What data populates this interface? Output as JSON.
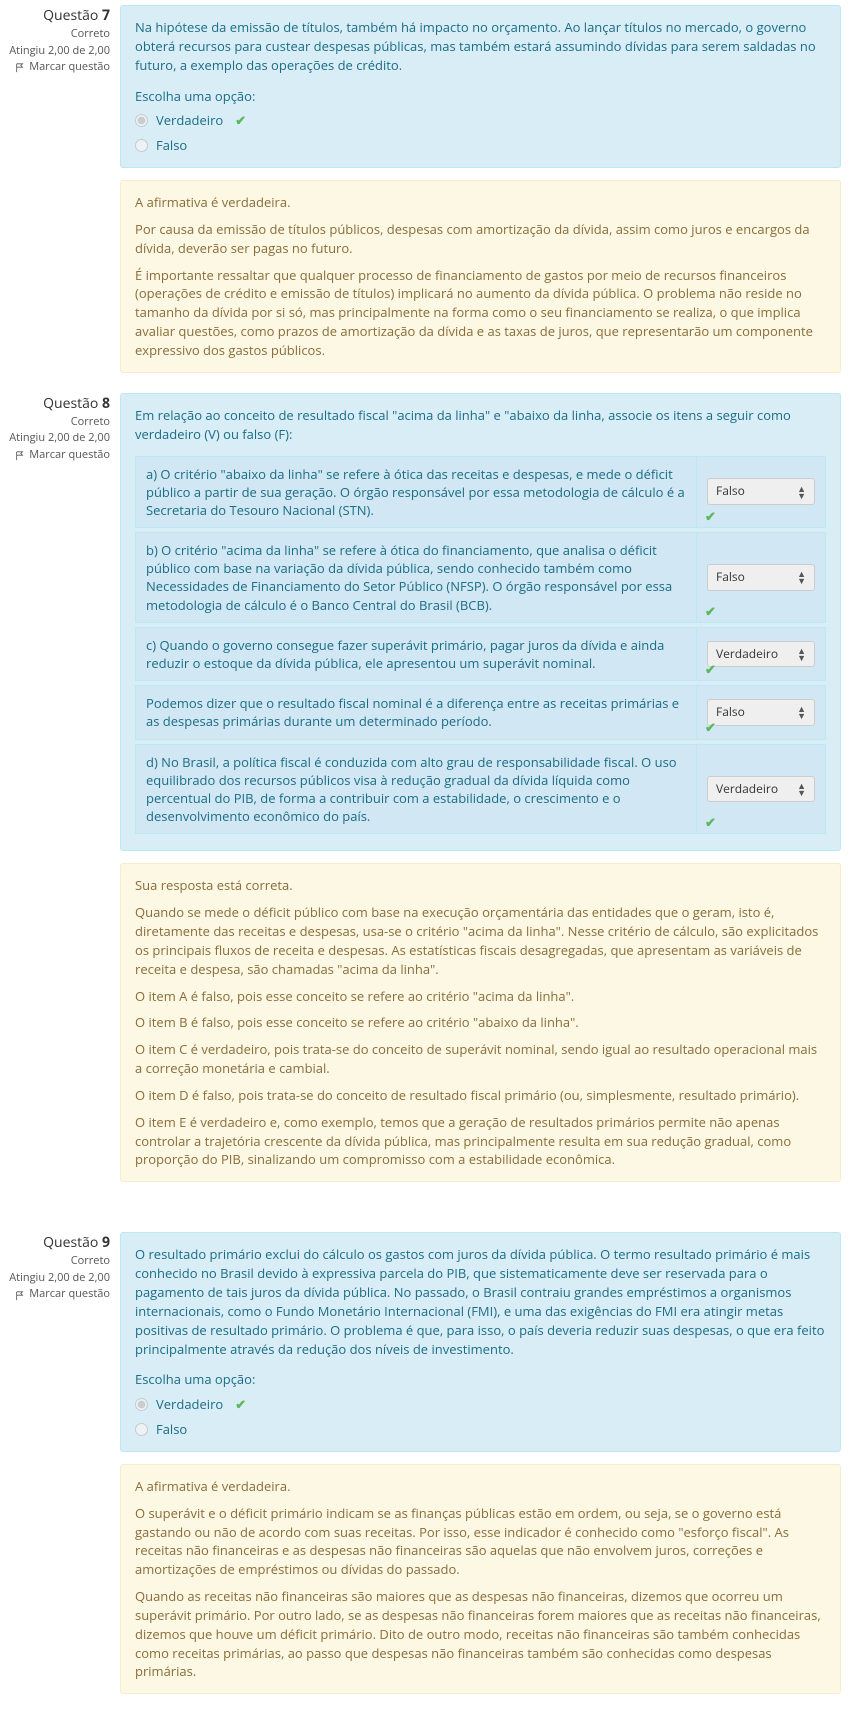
{
  "colors": {
    "info_bg": "#d9edf7",
    "info_border": "#bce8f1",
    "info_text": "#1b6d85",
    "feedback_bg": "#fcf8e3",
    "feedback_border": "#faebcc",
    "feedback_text": "#8a6d3b",
    "correct_green": "#5cb85c"
  },
  "labels": {
    "question_prefix": "Questão ",
    "correct": "Correto",
    "score_prefix": "Atingiu 2,00 de 2,00",
    "flag": "Marcar questão",
    "choose_one": "Escolha uma opção:",
    "true": "Verdadeiro",
    "false": "Falso"
  },
  "q7": {
    "number": "7",
    "text": "Na hipótese da emissão de títulos, também há impacto no orçamento. Ao lançar títulos no mercado, o governo obterá recursos para custear despesas públicas, mas também estará assumindo dívidas para serem saldadas no futuro, a exemplo das operações de crédito.",
    "selected": "true",
    "feedback": [
      "A afirmativa é verdadeira.",
      "Por causa da emissão de títulos públicos, despesas com amortização da dívida, assim como juros e encargos da dívida, deverão ser pagas no futuro.",
      "É importante ressaltar que qualquer processo de financiamento de gastos por meio de recursos financeiros (operações de crédito e emissão de títulos) implicará no aumento da dívida pública. O problema não reside no tamanho da dívida por si só, mas principalmente na forma como o seu financiamento se realiza, o que implica avaliar questões, como prazos de amortização da dívida e as taxas de juros, que representarão um componente expressivo dos gastos públicos."
    ]
  },
  "q8": {
    "number": "8",
    "text": "Em relação ao conceito de resultado fiscal \"acima da linha\" e \"abaixo da linha, associe os itens a seguir como verdadeiro (V) ou falso (F):",
    "items": [
      {
        "text": "a) O critério \"abaixo da linha\" se refere à ótica das receitas e despesas, e mede o déficit público a partir de sua geração. O órgão responsável por essa metodologia de cálculo é a Secretaria do Tesouro Nacional (STN).",
        "answer": "Falso"
      },
      {
        "text": "b) O critério \"acima da linha\" se refere à ótica do financiamento, que analisa o déficit público com base na variação da dívida pública, sendo conhecido também como Necessidades de Financiamento do Setor Público (NFSP). O órgão responsável por essa metodologia de cálculo é o Banco Central do Brasil (BCB).",
        "answer": "Falso"
      },
      {
        "text": "c) Quando o governo consegue fazer superávit primário, pagar juros da dívida e ainda reduzir o estoque da dívida pública, ele apresentou um superávit nominal.",
        "answer": "Verdadeiro"
      },
      {
        "text": "Podemos dizer que o resultado fiscal nominal é a diferença entre as receitas primárias e as despesas primárias durante um determinado período.",
        "answer": "Falso"
      },
      {
        "text": "d) No Brasil, a política fiscal é conduzida com alto grau de responsabilidade fiscal. O uso equilibrado dos recursos públicos visa à redução gradual da dívida líquida como percentual do PIB, de forma a contribuir com a estabilidade, o crescimento e o desenvolvimento econômico do país.",
        "answer": "Verdadeiro"
      }
    ],
    "feedback": [
      "Sua resposta está correta.",
      "Quando se mede o déficit público com base na execução orçamentária das entidades que o geram, isto é, diretamente das receitas e despesas, usa-se o critério \"acima da linha\".  Nesse critério de cálculo, são explicitados os principais fluxos de receita e despesas. As estatísticas fiscais desagregadas, que apresentam as variáveis de receita e despesa, são chamadas \"acima da linha\".",
      "O item A é falso, pois esse conceito se refere ao critério \"acima da linha\".",
      "O item B é falso, pois esse conceito se refere ao critério \"abaixo da linha\".",
      "O item C é verdadeiro, pois trata-se do conceito de superávit nominal, sendo igual ao resultado operacional mais a correção monetária e cambial.",
      "O item D é falso, pois trata-se do conceito de resultado fiscal primário (ou, simplesmente, resultado primário).",
      "O item E é verdadeiro e, como exemplo, temos que a geração de resultados primários permite não apenas controlar a trajetória crescente da dívida pública, mas principalmente resulta em sua redução gradual, como proporção do PIB, sinalizando um compromisso com a estabilidade econômica."
    ]
  },
  "q9": {
    "number": "9",
    "text": "O resultado primário  exclui do cálculo os gastos com juros da dívida pública. O termo resultado primário é mais conhecido no Brasil devido à expressiva parcela do PIB, que sistematicamente deve ser reservada para o pagamento de tais juros da dívida pública. No passado, o Brasil contraiu grandes empréstimos a organismos internacionais, como o Fundo Monetário Internacional (FMI), e uma das exigências do FMI era atingir metas positivas de resultado primário. O problema é que, para isso, o país deveria reduzir suas despesas, o que era feito principalmente através da redução dos níveis de investimento.",
    "selected": "true",
    "feedback": [
      "A afirmativa é verdadeira.",
      "O superávit e o déficit primário indicam se as finanças públicas estão em ordem, ou seja, se o governo está gastando ou não de acordo com suas receitas. Por isso, esse indicador é conhecido como \"esforço fiscal\". As receitas não financeiras e as despesas não financeiras são aquelas que não envolvem juros, correções e amortizações de empréstimos ou dívidas do passado.",
      "Quando as receitas não financeiras são maiores que as despesas não financeiras, dizemos que ocorreu um superávit primário. Por outro lado, se as despesas não financeiras forem maiores que as receitas não financeiras, dizemos que houve um déficit primário. Dito de outro modo, receitas não financeiras são também conhecidas como receitas primárias, ao passo que despesas não financeiras também são conhecidas como despesas primárias."
    ]
  }
}
